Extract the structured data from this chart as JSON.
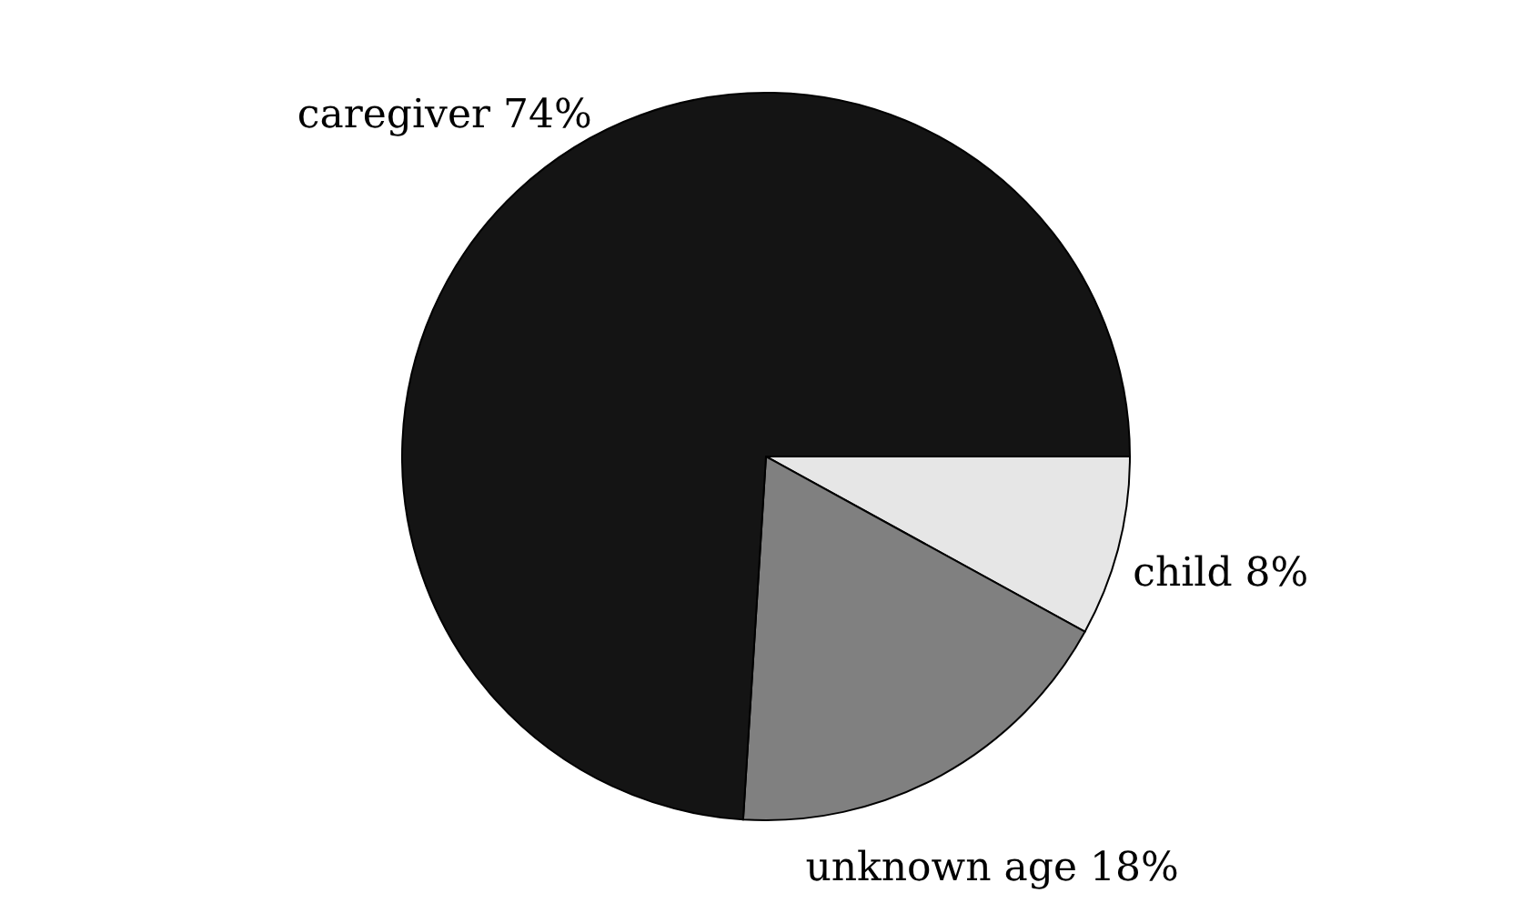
{
  "chart_data": {
    "type": "pie",
    "categories": [
      "child",
      "unknown age",
      "caregiver"
    ],
    "values": [
      8,
      18,
      74
    ],
    "value_labels": [
      "8%",
      "18%",
      "74%"
    ],
    "colors": [
      "#e6e6e6",
      "#808080",
      "#141414"
    ]
  }
}
